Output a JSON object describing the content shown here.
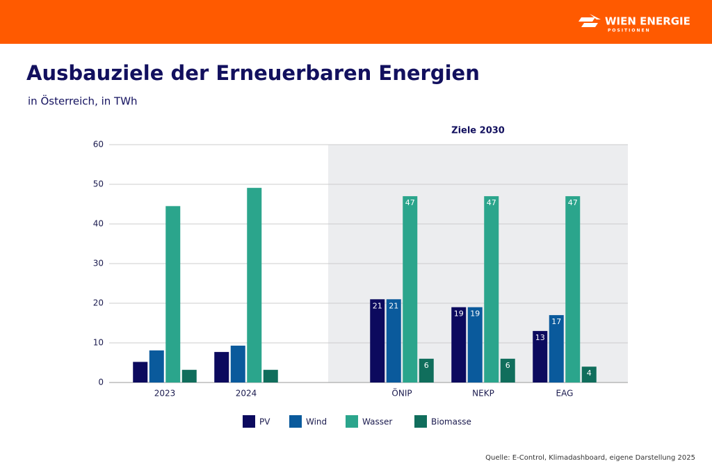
{
  "brand": {
    "name": "WIEN ENERGIE",
    "tagline": "POSITIONEN"
  },
  "chart_data": {
    "type": "bar",
    "title": "Ausbauziele der Erneuerbaren Energien",
    "subtitle": "in Österreich, in TWh",
    "categories": [
      "2023",
      "2024",
      "ÖNIP",
      "NEKP",
      "EAG"
    ],
    "highlight": {
      "label": "Ziele 2030",
      "start_index": 2
    },
    "series": [
      {
        "name": "PV",
        "color": "#0c0a5e",
        "values": [
          5.2,
          7.7,
          21,
          19,
          13
        ],
        "value_labels": [
          null,
          null,
          "21",
          "19",
          "13"
        ]
      },
      {
        "name": "Wind",
        "color": "#0a5a9c",
        "values": [
          8.1,
          9.3,
          21,
          19,
          17
        ],
        "value_labels": [
          null,
          null,
          "21",
          "19",
          "17"
        ]
      },
      {
        "name": "Wasser",
        "color": "#2ba58c",
        "values": [
          44.5,
          49.1,
          47,
          47,
          47
        ],
        "value_labels": [
          null,
          null,
          "47",
          "47",
          "47"
        ]
      },
      {
        "name": "Biomasse",
        "color": "#106e5c",
        "values": [
          3.2,
          3.2,
          6,
          6,
          4
        ],
        "value_labels": [
          null,
          null,
          "6",
          "6",
          "4"
        ]
      }
    ],
    "ylim": [
      0,
      60
    ],
    "yticks": [
      0,
      10,
      20,
      30,
      40,
      50,
      60
    ],
    "grid": true,
    "source": "Quelle: E-Control, Klimadashboard, eigene Darstellung 2025"
  }
}
